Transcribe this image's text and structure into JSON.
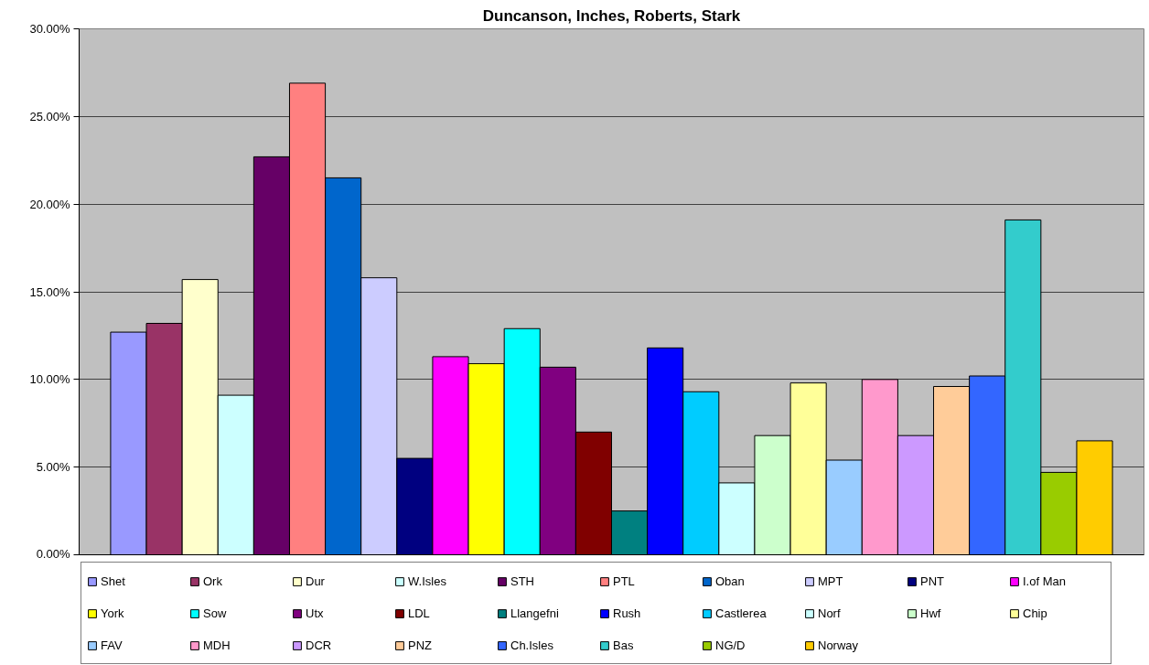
{
  "chart_data": {
    "type": "bar",
    "title": "Duncanson, Inches, Roberts, Stark",
    "categories": [
      null
    ],
    "series": [
      {
        "name": "Shet",
        "color": "#9999ff",
        "values": [
          12.7
        ]
      },
      {
        "name": "Ork",
        "color": "#993366",
        "values": [
          13.2
        ]
      },
      {
        "name": "Dur",
        "color": "#ffffcc",
        "values": [
          15.7
        ]
      },
      {
        "name": "W.Isles",
        "color": "#ccffff",
        "values": [
          9.1
        ]
      },
      {
        "name": "STH",
        "color": "#660066",
        "values": [
          22.7
        ]
      },
      {
        "name": "PTL",
        "color": "#ff8080",
        "values": [
          26.9
        ]
      },
      {
        "name": "Oban",
        "color": "#0066cc",
        "values": [
          21.5
        ]
      },
      {
        "name": "MPT",
        "color": "#ccccff",
        "values": [
          15.8
        ]
      },
      {
        "name": "PNT",
        "color": "#000080",
        "values": [
          5.5
        ]
      },
      {
        "name": "I.of Man",
        "color": "#ff00ff",
        "values": [
          11.3
        ]
      },
      {
        "name": "York",
        "color": "#ffff00",
        "values": [
          10.9
        ]
      },
      {
        "name": "Sow",
        "color": "#00ffff",
        "values": [
          12.9
        ]
      },
      {
        "name": "Utx",
        "color": "#800080",
        "values": [
          10.7
        ]
      },
      {
        "name": "LDL",
        "color": "#800000",
        "values": [
          7.0
        ]
      },
      {
        "name": "Llangefni",
        "color": "#008080",
        "values": [
          2.5
        ]
      },
      {
        "name": "Rush",
        "color": "#0000ff",
        "values": [
          11.8
        ]
      },
      {
        "name": "Castlerea",
        "color": "#00ccff",
        "values": [
          9.3
        ]
      },
      {
        "name": "Norf",
        "color": "#ccffff",
        "values": [
          4.1
        ]
      },
      {
        "name": "Hwf",
        "color": "#ccffcc",
        "values": [
          6.8
        ]
      },
      {
        "name": "Chip",
        "color": "#ffff99",
        "values": [
          9.8
        ]
      },
      {
        "name": "FAV",
        "color": "#99ccff",
        "values": [
          5.4
        ]
      },
      {
        "name": "MDH",
        "color": "#ff99cc",
        "values": [
          10.0
        ]
      },
      {
        "name": "DCR",
        "color": "#cc99ff",
        "values": [
          6.8
        ]
      },
      {
        "name": "PNZ",
        "color": "#ffcc99",
        "values": [
          9.6
        ]
      },
      {
        "name": "Ch.Isles",
        "color": "#3366ff",
        "values": [
          10.2
        ]
      },
      {
        "name": "Bas",
        "color": "#33cccc",
        "values": [
          19.1
        ]
      },
      {
        "name": "NG/D",
        "color": "#99cc00",
        "values": [
          4.7
        ]
      },
      {
        "name": "Norway",
        "color": "#ffcc00",
        "values": [
          6.5
        ]
      }
    ],
    "ylim": [
      0,
      30
    ],
    "yticks": [
      {
        "value": 0,
        "label": "0.00%"
      },
      {
        "value": 5,
        "label": "5.00%"
      },
      {
        "value": 10,
        "label": "10.00%"
      },
      {
        "value": 15,
        "label": "15.00%"
      },
      {
        "value": 20,
        "label": "20.00%"
      },
      {
        "value": 25,
        "label": "25.00%"
      },
      {
        "value": 30,
        "label": "30.00%"
      }
    ],
    "grid": "y",
    "legend": "bottom"
  }
}
